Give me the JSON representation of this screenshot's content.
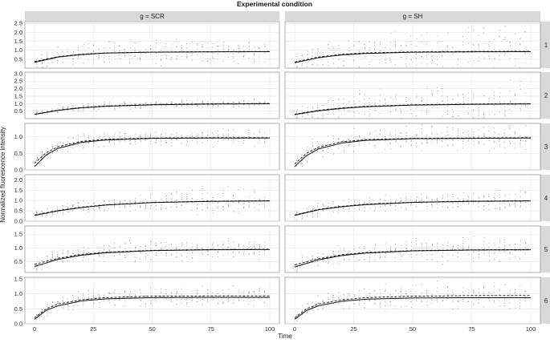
{
  "chart_data": {
    "type": "line",
    "title": "Experimental condition",
    "xlabel": "Time",
    "ylabel": "Normalized fluorescence intensity",
    "column_facets": [
      "g = SCR",
      "g = SH"
    ],
    "row_facets": [
      "1",
      "2",
      "3",
      "4",
      "5",
      "6"
    ],
    "xlim": [
      0,
      100
    ],
    "x_ticks": [
      "0",
      "25",
      "50",
      "75",
      "100"
    ],
    "grid": true,
    "rows": [
      {
        "label": "1",
        "ylim": [
          0,
          2.6
        ],
        "y_ticks": [
          "0.5",
          "1.0",
          "1.5",
          "2.0",
          "2.5"
        ],
        "SCR": {
          "x": [
            0,
            10,
            20,
            30,
            50,
            75,
            100
          ],
          "fit_solid": [
            0.32,
            0.62,
            0.76,
            0.84,
            0.89,
            0.91,
            0.92
          ],
          "fit_dashed": [
            0.37,
            0.64,
            0.78,
            0.85,
            0.9,
            0.92,
            0.93
          ],
          "data_spread": [
            0.4,
            0.6,
            0.7,
            0.8,
            0.8,
            0.8,
            0.8
          ]
        },
        "SH": {
          "x": [
            0,
            10,
            20,
            30,
            50,
            75,
            100
          ],
          "fit_solid": [
            0.3,
            0.58,
            0.74,
            0.82,
            0.89,
            0.91,
            0.92
          ],
          "fit_dashed": [
            0.34,
            0.62,
            0.77,
            0.85,
            0.91,
            0.93,
            0.94
          ],
          "data_spread": [
            0.5,
            0.9,
            1.1,
            1.2,
            1.4,
            1.6,
            1.8
          ]
        }
      },
      {
        "label": "2",
        "ylim": [
          0,
          3.1
        ],
        "y_ticks": [
          "0.5",
          "1.0",
          "1.5",
          "2.0",
          "2.5",
          "3.0"
        ],
        "SCR": {
          "x": [
            0,
            10,
            20,
            30,
            50,
            75,
            100
          ],
          "fit_solid": [
            0.28,
            0.55,
            0.72,
            0.82,
            0.92,
            0.97,
            0.99
          ],
          "fit_dashed": [
            0.3,
            0.57,
            0.74,
            0.84,
            0.94,
            0.99,
            1.01
          ],
          "data_spread": [
            0.2,
            0.3,
            0.3,
            0.3,
            0.3,
            0.3,
            0.3
          ]
        },
        "SH": {
          "x": [
            0,
            10,
            20,
            30,
            50,
            75,
            100
          ],
          "fit_solid": [
            0.27,
            0.52,
            0.68,
            0.79,
            0.9,
            0.95,
            0.98
          ],
          "fit_dashed": [
            0.29,
            0.55,
            0.71,
            0.82,
            0.92,
            0.97,
            1.0
          ],
          "data_spread": [
            0.6,
            0.9,
            1.0,
            1.2,
            1.4,
            1.5,
            1.8
          ]
        }
      },
      {
        "label": "3",
        "ylim": [
          0,
          1.4
        ],
        "y_ticks": [
          "0.0",
          "0.5",
          "1.0"
        ],
        "SCR": {
          "x": [
            0,
            5,
            10,
            20,
            30,
            50,
            75,
            100
          ],
          "fit_solid": [
            0.1,
            0.45,
            0.65,
            0.83,
            0.9,
            0.95,
            0.96,
            0.96
          ],
          "fit_dashed": [
            0.2,
            0.52,
            0.7,
            0.86,
            0.92,
            0.96,
            0.97,
            0.97
          ],
          "data_spread": [
            0.2,
            0.25,
            0.25,
            0.25,
            0.25,
            0.25,
            0.3,
            0.3
          ]
        },
        "SH": {
          "x": [
            0,
            5,
            10,
            20,
            30,
            50,
            75,
            100
          ],
          "fit_solid": [
            0.1,
            0.43,
            0.63,
            0.81,
            0.89,
            0.94,
            0.95,
            0.96
          ],
          "fit_dashed": [
            0.18,
            0.5,
            0.68,
            0.85,
            0.91,
            0.95,
            0.96,
            0.97
          ],
          "data_spread": [
            0.3,
            0.35,
            0.4,
            0.4,
            0.45,
            0.45,
            0.45,
            0.4
          ]
        }
      },
      {
        "label": "4",
        "ylim": [
          0,
          2.25
        ],
        "y_ticks": [
          "0.0",
          "0.5",
          "1.0",
          "1.5",
          "2.0"
        ],
        "SCR": {
          "x": [
            0,
            10,
            20,
            30,
            50,
            75,
            100
          ],
          "fit_solid": [
            0.28,
            0.5,
            0.66,
            0.78,
            0.9,
            0.96,
            0.98
          ],
          "fit_dashed": [
            0.3,
            0.52,
            0.68,
            0.79,
            0.91,
            0.97,
            0.99
          ],
          "data_spread": [
            0.2,
            0.3,
            0.4,
            0.4,
            0.5,
            0.8,
            0.6
          ]
        },
        "SH": {
          "x": [
            0,
            10,
            20,
            30,
            50,
            75,
            100
          ],
          "fit_solid": [
            0.28,
            0.55,
            0.7,
            0.8,
            0.91,
            0.96,
            0.98
          ],
          "fit_dashed": [
            0.3,
            0.57,
            0.72,
            0.82,
            0.92,
            0.97,
            0.99
          ],
          "data_spread": [
            0.3,
            0.4,
            0.4,
            0.4,
            0.5,
            0.5,
            0.6
          ]
        }
      },
      {
        "label": "5",
        "ylim": [
          0.1,
          1.8
        ],
        "y_ticks": [
          "0.5",
          "1.0",
          "1.5"
        ],
        "SCR": {
          "x": [
            0,
            10,
            20,
            30,
            50,
            75,
            100
          ],
          "fit_solid": [
            0.32,
            0.58,
            0.73,
            0.82,
            0.9,
            0.93,
            0.94
          ],
          "fit_dashed": [
            0.4,
            0.62,
            0.76,
            0.84,
            0.91,
            0.94,
            0.95
          ],
          "data_spread": [
            0.3,
            0.35,
            0.4,
            0.4,
            0.45,
            0.45,
            0.45
          ]
        },
        "SH": {
          "x": [
            0,
            10,
            20,
            30,
            50,
            75,
            100
          ],
          "fit_solid": [
            0.3,
            0.56,
            0.72,
            0.81,
            0.89,
            0.92,
            0.93
          ],
          "fit_dashed": [
            0.38,
            0.6,
            0.75,
            0.83,
            0.9,
            0.93,
            0.94
          ],
          "data_spread": [
            0.3,
            0.35,
            0.4,
            0.45,
            0.5,
            0.6,
            0.5
          ]
        }
      },
      {
        "label": "6",
        "ylim": [
          0,
          1.55
        ],
        "y_ticks": [
          "0.0",
          "0.5",
          "1.0",
          "1.5"
        ],
        "SCR": {
          "x": [
            0,
            5,
            10,
            20,
            30,
            50,
            75,
            100
          ],
          "fit_solid": [
            0.15,
            0.45,
            0.6,
            0.76,
            0.83,
            0.87,
            0.88,
            0.88
          ],
          "fit_dashed": [
            0.2,
            0.5,
            0.66,
            0.8,
            0.87,
            0.92,
            0.93,
            0.93
          ],
          "data_spread": [
            0.2,
            0.3,
            0.35,
            0.35,
            0.35,
            0.35,
            0.35,
            0.35
          ]
        },
        "SH": {
          "x": [
            0,
            5,
            10,
            20,
            30,
            50,
            75,
            100
          ],
          "fit_solid": [
            0.15,
            0.44,
            0.6,
            0.75,
            0.82,
            0.86,
            0.87,
            0.87
          ],
          "fit_dashed": [
            0.2,
            0.5,
            0.66,
            0.8,
            0.87,
            0.92,
            0.94,
            0.94
          ],
          "data_spread": [
            0.25,
            0.35,
            0.4,
            0.45,
            0.45,
            0.5,
            0.55,
            0.5
          ]
        }
      }
    ]
  }
}
